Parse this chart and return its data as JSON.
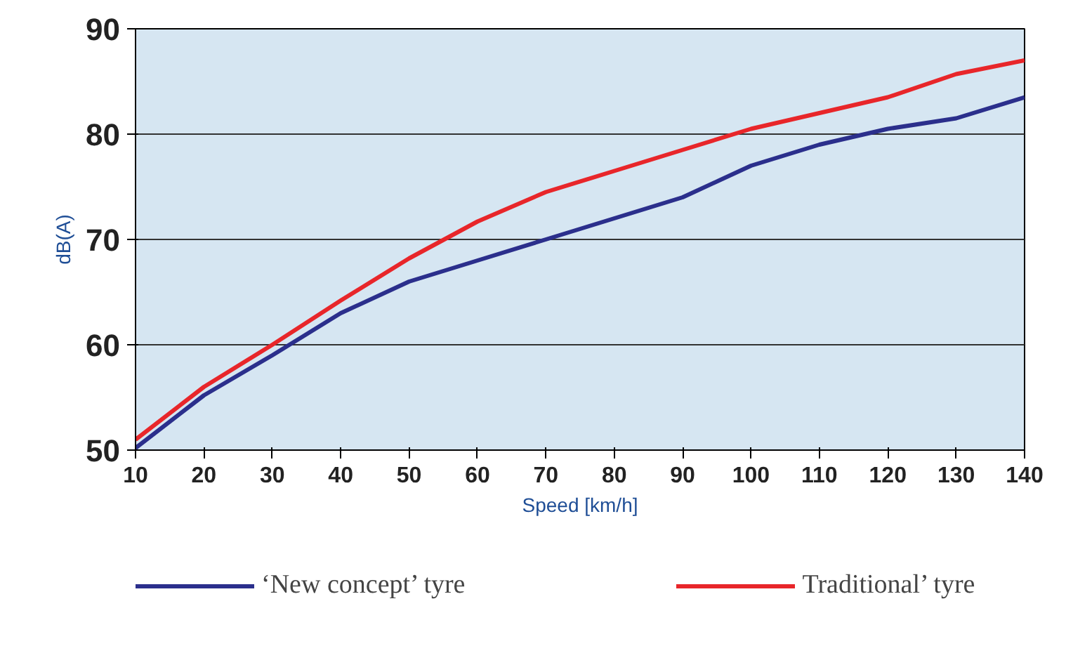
{
  "chart_data": {
    "type": "line",
    "xlabel": "Speed [km/h]",
    "ylabel": "dB(A)",
    "x": [
      10,
      20,
      30,
      40,
      50,
      60,
      70,
      80,
      90,
      100,
      110,
      120,
      130,
      140
    ],
    "series": [
      {
        "name": "‘New concept’ tyre",
        "color": "#2b2f8c",
        "values": [
          50.2,
          55.2,
          59,
          63,
          66,
          68,
          70,
          72,
          74,
          77,
          79,
          80.5,
          81.5,
          83.5
        ]
      },
      {
        "name": "Traditional’ tyre",
        "color": "#e8262a",
        "values": [
          51,
          56,
          60,
          64.2,
          68.2,
          71.7,
          74.5,
          76.5,
          78.5,
          80.5,
          82,
          83.5,
          85.7,
          87
        ]
      }
    ],
    "xlim": [
      10,
      140
    ],
    "ylim": [
      50,
      90
    ],
    "xticks": [
      10,
      20,
      30,
      40,
      50,
      60,
      70,
      80,
      90,
      100,
      110,
      120,
      130,
      140
    ],
    "yticks": [
      50,
      60,
      70,
      80,
      90
    ],
    "grid": "y",
    "legend": "bottom",
    "marker": "none",
    "line_style": "solid"
  }
}
